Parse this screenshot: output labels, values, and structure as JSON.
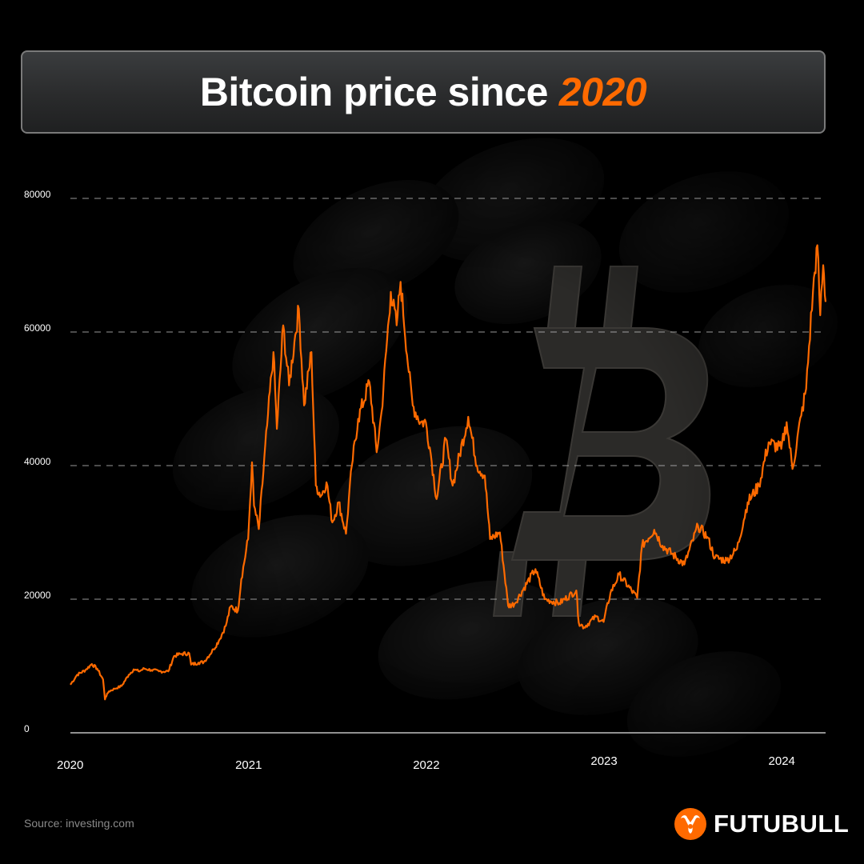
{
  "title": {
    "text": "Bitcoin price since",
    "highlight": "2020"
  },
  "source": "Source: investing.com",
  "brand": {
    "name": "FUTUBULL",
    "accent_color": "#ff6a00"
  },
  "colors": {
    "line": "#ff6a00",
    "grid": "#bdbdbd",
    "background": "#000000"
  },
  "chart_data": {
    "type": "line",
    "title": "Bitcoin price since 2020",
    "xlabel": "",
    "ylabel": "",
    "ylim": [
      0,
      80000
    ],
    "xlim": [
      "2020-01-01",
      "2024-03-31"
    ],
    "yticks": [
      "0",
      "20000",
      "40000",
      "60000",
      "80000"
    ],
    "xticks": [
      {
        "label": "2020",
        "date": "2020-01-01"
      },
      {
        "label": "2021",
        "date": "2021-01-01"
      },
      {
        "label": "2022",
        "date": "2022-01-01"
      },
      {
        "label": "2023",
        "date": "2023-01-01"
      },
      {
        "label": "2024",
        "date": "2024-01-01"
      }
    ],
    "grid": "horizontal-dashed",
    "series": [
      {
        "color": "#ff6a00",
        "points": [
          [
            "2020-01-01",
            7200
          ],
          [
            "2020-01-15",
            8700
          ],
          [
            "2020-02-01",
            9400
          ],
          [
            "2020-02-14",
            10300
          ],
          [
            "2020-02-25",
            9600
          ],
          [
            "2020-03-08",
            8000
          ],
          [
            "2020-03-12",
            5000
          ],
          [
            "2020-03-13",
            5300
          ],
          [
            "2020-03-20",
            6200
          ],
          [
            "2020-04-01",
            6600
          ],
          [
            "2020-04-15",
            7000
          ],
          [
            "2020-04-30",
            8700
          ],
          [
            "2020-05-10",
            9500
          ],
          [
            "2020-05-20",
            9200
          ],
          [
            "2020-06-01",
            9600
          ],
          [
            "2020-06-15",
            9400
          ],
          [
            "2020-07-01",
            9200
          ],
          [
            "2020-07-20",
            9200
          ],
          [
            "2020-08-01",
            11500
          ],
          [
            "2020-08-15",
            11800
          ],
          [
            "2020-09-01",
            11900
          ],
          [
            "2020-09-05",
            10200
          ],
          [
            "2020-09-20",
            10500
          ],
          [
            "2020-10-01",
            10600
          ],
          [
            "2020-10-21",
            12500
          ],
          [
            "2020-11-01",
            13800
          ],
          [
            "2020-11-15",
            16000
          ],
          [
            "2020-11-25",
            18900
          ],
          [
            "2020-12-10",
            18300
          ],
          [
            "2020-12-17",
            23000
          ],
          [
            "2020-12-31",
            29000
          ],
          [
            "2021-01-08",
            40500
          ],
          [
            "2021-01-12",
            34000
          ],
          [
            "2021-01-22",
            30500
          ],
          [
            "2021-02-08",
            46000
          ],
          [
            "2021-02-21",
            57000
          ],
          [
            "2021-02-28",
            45500
          ],
          [
            "2021-03-13",
            61000
          ],
          [
            "2021-03-25",
            52000
          ],
          [
            "2021-04-05",
            58500
          ],
          [
            "2021-04-14",
            63500
          ],
          [
            "2021-04-25",
            49000
          ],
          [
            "2021-05-10",
            57000
          ],
          [
            "2021-05-19",
            37000
          ],
          [
            "2021-05-30",
            35500
          ],
          [
            "2021-06-10",
            37500
          ],
          [
            "2021-06-22",
            31500
          ],
          [
            "2021-07-05",
            34500
          ],
          [
            "2021-07-20",
            29800
          ],
          [
            "2021-08-01",
            40000
          ],
          [
            "2021-08-14",
            47000
          ],
          [
            "2021-09-06",
            52500
          ],
          [
            "2021-09-21",
            42000
          ],
          [
            "2021-10-01",
            48000
          ],
          [
            "2021-10-20",
            66000
          ],
          [
            "2021-11-01",
            61000
          ],
          [
            "2021-11-09",
            67500
          ],
          [
            "2021-11-26",
            54000
          ],
          [
            "2021-12-04",
            49000
          ],
          [
            "2021-12-20",
            46500
          ],
          [
            "2021-12-31",
            46500
          ],
          [
            "2022-01-10",
            41800
          ],
          [
            "2022-01-22",
            35000
          ],
          [
            "2022-02-10",
            44000
          ],
          [
            "2022-02-24",
            37000
          ],
          [
            "2022-03-28",
            47300
          ],
          [
            "2022-04-15",
            40000
          ],
          [
            "2022-05-01",
            38500
          ],
          [
            "2022-05-12",
            29000
          ],
          [
            "2022-06-01",
            30000
          ],
          [
            "2022-06-18",
            19000
          ],
          [
            "2022-07-01",
            19300
          ],
          [
            "2022-08-13",
            24500
          ],
          [
            "2022-09-01",
            20000
          ],
          [
            "2022-10-01",
            19400
          ],
          [
            "2022-11-05",
            21300
          ],
          [
            "2022-11-10",
            16500
          ],
          [
            "2022-11-21",
            15800
          ],
          [
            "2022-12-15",
            17400
          ],
          [
            "2022-12-31",
            16600
          ],
          [
            "2023-01-14",
            20900
          ],
          [
            "2023-02-01",
            23700
          ],
          [
            "2023-03-10",
            20200
          ],
          [
            "2023-03-20",
            28000
          ],
          [
            "2023-04-14",
            30400
          ],
          [
            "2023-05-01",
            28000
          ],
          [
            "2023-06-15",
            25200
          ],
          [
            "2023-07-13",
            31000
          ],
          [
            "2023-08-01",
            29300
          ],
          [
            "2023-08-17",
            26200
          ],
          [
            "2023-09-10",
            25800
          ],
          [
            "2023-10-01",
            27500
          ],
          [
            "2023-10-23",
            34500
          ],
          [
            "2023-11-15",
            37000
          ],
          [
            "2023-12-05",
            43500
          ],
          [
            "2023-12-31",
            42500
          ],
          [
            "2024-01-11",
            46500
          ],
          [
            "2024-01-23",
            39500
          ],
          [
            "2024-02-10",
            47500
          ],
          [
            "2024-02-20",
            51500
          ],
          [
            "2024-03-05",
            66000
          ],
          [
            "2024-03-14",
            73000
          ],
          [
            "2024-03-20",
            62500
          ],
          [
            "2024-03-26",
            70000
          ],
          [
            "2024-03-31",
            64500
          ]
        ]
      }
    ]
  }
}
